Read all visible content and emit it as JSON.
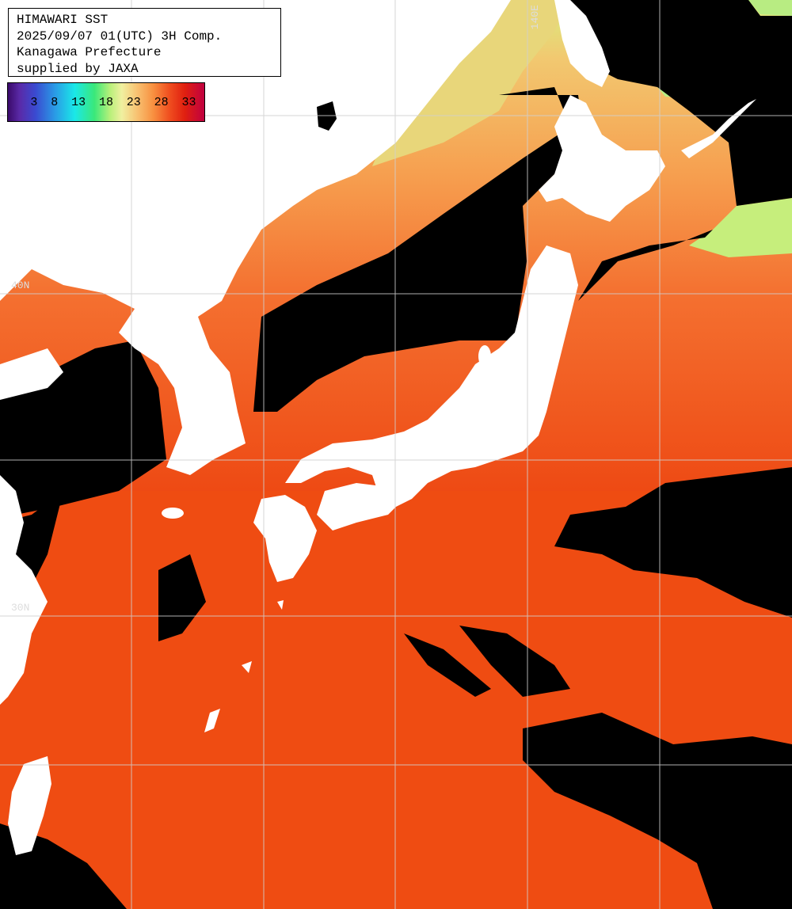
{
  "title": {
    "line1": "HIMAWARI SST",
    "line2": "2025/09/07 01(UTC) 3H Comp.",
    "line3": "Kanagawa Prefecture",
    "line4": "supplied by JAXA"
  },
  "colorbar": {
    "labels": [
      "3",
      "8",
      "13",
      "18",
      "23",
      "28",
      "33"
    ]
  },
  "grid_labels": {
    "lat_40": "40N",
    "lat_30": "30N",
    "lon_140": "140E"
  },
  "colors": {
    "land": "#ffffff",
    "cloud_nodata": "#000000",
    "warm_sea": "#f04a10",
    "cool_sea": "#f6a050",
    "cold_sea": "#c8f07a",
    "grid": "#d0d0d0"
  }
}
